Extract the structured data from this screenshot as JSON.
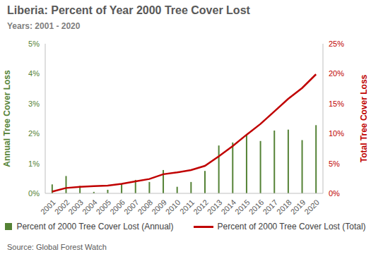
{
  "chart_data": {
    "type": "bar",
    "title": "Liberia: Percent of Year 2000 Tree Cover Lost",
    "subtitle": "Years: 2001 - 2020",
    "y_label": "Annual Tree Cover Loss",
    "y2_label": "Total Tree Cover Loss",
    "source": "Source: Global Forest Watch",
    "categories": [
      "2001",
      "2002",
      "2003",
      "2004",
      "2005",
      "2006",
      "2007",
      "2008",
      "2009",
      "2010",
      "2011",
      "2012",
      "2013",
      "2014",
      "2015",
      "2016",
      "2017",
      "2018",
      "2019",
      "2020"
    ],
    "series": [
      {
        "name": "Percent of 2000 Tree Cover Lost (Annual)",
        "type": "bar",
        "color": "#548235",
        "values": [
          0.3,
          0.58,
          0.25,
          0.05,
          0.12,
          0.32,
          0.45,
          0.38,
          0.78,
          0.22,
          0.38,
          0.75,
          1.6,
          1.7,
          1.95,
          1.75,
          2.1,
          2.13,
          1.78,
          2.28
        ]
      },
      {
        "name": "Percent of 2000 Tree Cover Lost (Total)",
        "type": "line",
        "axis": "y2",
        "color": "#c00000",
        "values": [
          0.3,
          0.9,
          1.1,
          1.2,
          1.3,
          1.6,
          2.0,
          2.4,
          3.2,
          3.5,
          3.9,
          4.6,
          6.2,
          7.9,
          9.8,
          11.6,
          13.7,
          15.8,
          17.6,
          19.9
        ]
      }
    ],
    "ylim": [
      0,
      5
    ],
    "yticks": [
      {
        "value": 0,
        "label": "0%"
      },
      {
        "value": 1,
        "label": "1%"
      },
      {
        "value": 2,
        "label": "2%"
      },
      {
        "value": 3,
        "label": "3%"
      },
      {
        "value": 4,
        "label": "4%"
      },
      {
        "value": 5,
        "label": "5%"
      }
    ],
    "y2lim": [
      0,
      25
    ],
    "y2ticks": [
      {
        "value": 0,
        "label": "0%"
      },
      {
        "value": 5,
        "label": "5%"
      },
      {
        "value": 10,
        "label": "10%"
      },
      {
        "value": 15,
        "label": "15%"
      },
      {
        "value": 20,
        "label": "20%"
      },
      {
        "value": 25,
        "label": "25%"
      }
    ],
    "grid": false,
    "legend": "bottom"
  }
}
